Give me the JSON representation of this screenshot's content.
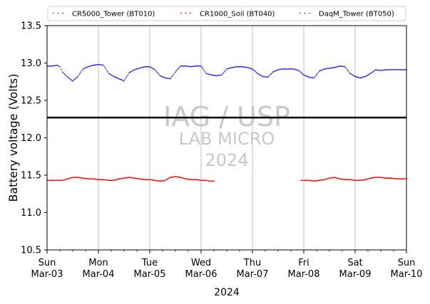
{
  "chart_data": {
    "type": "scatter",
    "xlabel": "2024",
    "ylabel": "Battery voltage (Volts)",
    "ylim": [
      10.5,
      13.5
    ],
    "y_ticks": [
      "10.5",
      "11.0",
      "11.5",
      "12.0",
      "12.5",
      "13.0",
      "13.5"
    ],
    "y_tick_values": [
      10.5,
      11.0,
      11.5,
      12.0,
      12.5,
      13.0,
      13.5
    ],
    "x_range_days": [
      0,
      7
    ],
    "x_ticks": [
      {
        "day": 0,
        "line1": "Sun",
        "line2": "Mar-03"
      },
      {
        "day": 1,
        "line1": "Mon",
        "line2": "Mar-04"
      },
      {
        "day": 2,
        "line1": "Tue",
        "line2": "Mar-05"
      },
      {
        "day": 3,
        "line1": "Wed",
        "line2": "Mar-06"
      },
      {
        "day": 4,
        "line1": "Thu",
        "line2": "Mar-07"
      },
      {
        "day": 5,
        "line1": "Fri",
        "line2": "Mar-08"
      },
      {
        "day": 6,
        "line1": "Sat",
        "line2": "Mar-09"
      },
      {
        "day": 7,
        "line1": "Sun",
        "line2": "Mar-10"
      }
    ],
    "grid": "vertical",
    "reference_line": {
      "y": 12.27,
      "color": "#000000"
    },
    "legend_position": "top",
    "watermark": [
      "IAG / USP",
      "LAB MICRO",
      "2024"
    ],
    "series": [
      {
        "name": "CR5000_Tower (BT010)",
        "color": "#2b2bff",
        "x": [
          0.0,
          0.1,
          0.2,
          0.25,
          0.3,
          0.4,
          0.5,
          0.6,
          0.7,
          0.8,
          0.9,
          1.0,
          1.1,
          1.2,
          1.3,
          1.4,
          1.5,
          1.6,
          1.7,
          1.8,
          1.9,
          2.0,
          2.1,
          2.2,
          2.3,
          2.4,
          2.5,
          2.6,
          2.7,
          2.8,
          2.9,
          3.0,
          3.1,
          3.2,
          3.3,
          3.4,
          3.5,
          3.6,
          3.7,
          3.8,
          3.9,
          4.0,
          4.1,
          4.2,
          4.3,
          4.4,
          4.5,
          4.6,
          4.7,
          4.8,
          4.9,
          5.0,
          5.1,
          5.2,
          5.3,
          5.4,
          5.5,
          5.6,
          5.7,
          5.8,
          5.9,
          6.0,
          6.1,
          6.2,
          6.3,
          6.4,
          6.5,
          6.6,
          6.7,
          6.8,
          6.9,
          7.0
        ],
        "y": [
          12.96,
          12.96,
          12.97,
          12.95,
          12.88,
          12.81,
          12.76,
          12.82,
          12.92,
          12.95,
          12.97,
          12.98,
          12.97,
          12.86,
          12.82,
          12.79,
          12.76,
          12.87,
          12.91,
          12.93,
          12.95,
          12.95,
          12.91,
          12.83,
          12.8,
          12.79,
          12.88,
          12.96,
          12.96,
          12.95,
          12.96,
          12.96,
          12.86,
          12.84,
          12.83,
          12.84,
          12.92,
          12.94,
          12.95,
          12.95,
          12.94,
          12.92,
          12.86,
          12.82,
          12.81,
          12.88,
          12.91,
          12.92,
          12.92,
          12.92,
          12.9,
          12.84,
          12.81,
          12.8,
          12.89,
          12.92,
          12.93,
          12.94,
          12.96,
          12.95,
          12.86,
          12.82,
          12.8,
          12.82,
          12.86,
          12.91,
          12.9,
          12.91,
          12.91,
          12.91,
          12.91,
          12.91
        ]
      },
      {
        "name": "CR1000_Soil (BT040)",
        "color": "#ff0000",
        "segments": [
          {
            "x": [
              0.0,
              0.1,
              0.2,
              0.3,
              0.4,
              0.5,
              0.6,
              0.7,
              0.8,
              0.9,
              1.0,
              1.1,
              1.2,
              1.3,
              1.4,
              1.5,
              1.6,
              1.7,
              1.8,
              1.9,
              2.0,
              2.1,
              2.2,
              2.3,
              2.4,
              2.5,
              2.6,
              2.7,
              2.8,
              2.9,
              3.0,
              3.1,
              3.15,
              3.25
            ],
            "y": [
              11.43,
              11.43,
              11.43,
              11.43,
              11.45,
              11.47,
              11.47,
              11.46,
              11.45,
              11.45,
              11.44,
              11.44,
              11.43,
              11.43,
              11.45,
              11.46,
              11.47,
              11.46,
              11.45,
              11.44,
              11.44,
              11.43,
              11.42,
              11.43,
              11.47,
              11.48,
              11.47,
              11.45,
              11.44,
              11.44,
              11.43,
              11.43,
              11.42,
              11.42
            ]
          },
          {
            "x": [
              4.95,
              5.0,
              5.1,
              5.2,
              5.3,
              5.4,
              5.5,
              5.6,
              5.7,
              5.8,
              5.9,
              6.0,
              6.1,
              6.2,
              6.3,
              6.4,
              6.5,
              6.6,
              6.7,
              6.8,
              6.9,
              7.0
            ],
            "y": [
              11.43,
              11.43,
              11.43,
              11.42,
              11.43,
              11.44,
              11.46,
              11.47,
              11.45,
              11.44,
              11.44,
              11.43,
              11.43,
              11.44,
              11.46,
              11.47,
              11.47,
              11.46,
              11.46,
              11.45,
              11.45,
              11.45
            ]
          }
        ]
      },
      {
        "name": "DaqM_Tower (BT050)",
        "color": "#3b3b5a",
        "x": [],
        "y": []
      }
    ]
  }
}
